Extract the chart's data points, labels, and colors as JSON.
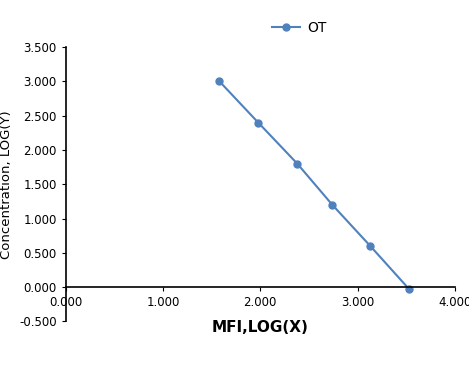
{
  "x": [
    1.58,
    1.978,
    2.38,
    2.74,
    3.13,
    3.53
  ],
  "y": [
    3.0,
    2.4,
    1.8,
    1.2,
    0.6,
    -0.03
  ],
  "line_color": "#4f81bd",
  "marker": "o",
  "marker_size": 5,
  "legend_label": "OT",
  "xlabel": "MFI,LOG(X)",
  "ylabel": "Concentration, LOG(Y)",
  "xlim": [
    0.0,
    4.0
  ],
  "ylim": [
    -0.5,
    3.5
  ],
  "xticks": [
    0.0,
    1.0,
    2.0,
    3.0,
    4.0
  ],
  "yticks": [
    -0.5,
    0.0,
    0.5,
    1.0,
    1.5,
    2.0,
    2.5,
    3.0,
    3.5
  ],
  "xlabel_fontsize": 11,
  "ylabel_fontsize": 9.5,
  "tick_fontsize": 8.5,
  "legend_fontsize": 10,
  "background_color": "#ffffff"
}
